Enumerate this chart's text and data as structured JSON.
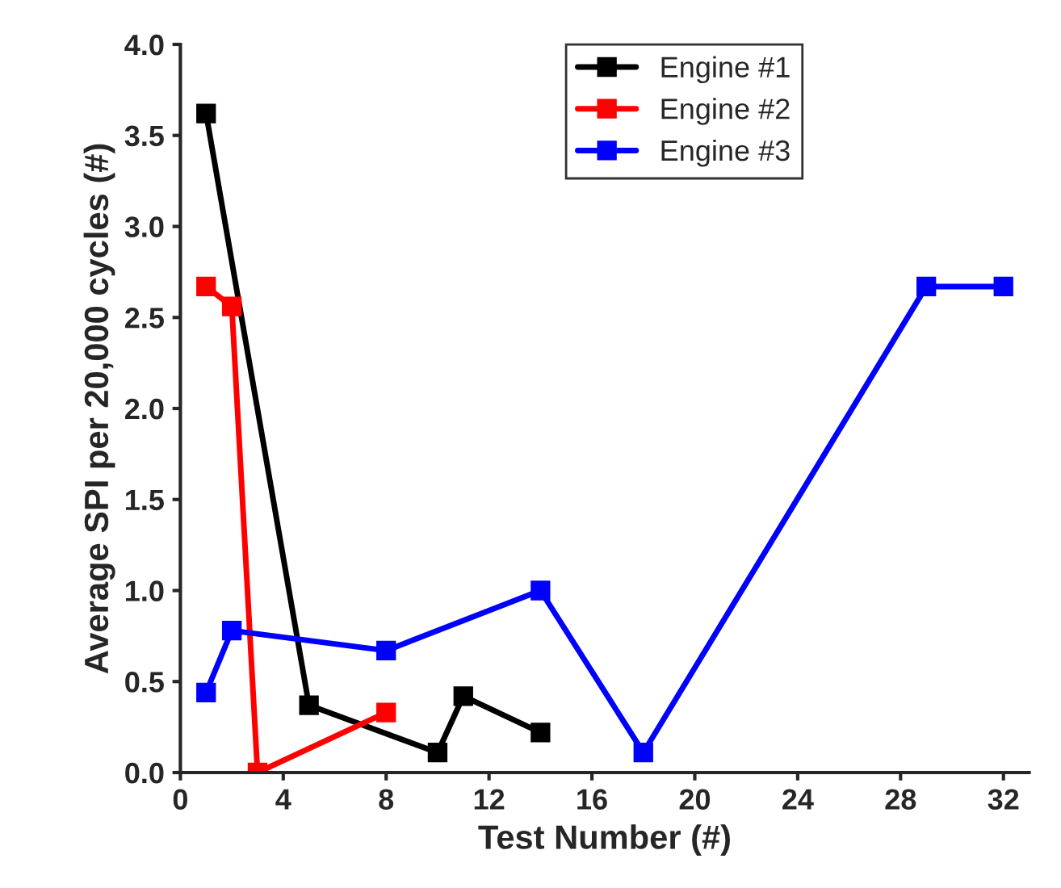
{
  "chart_data": {
    "type": "line",
    "xlabel": "Test Number (#)",
    "ylabel": "Average SPI per 20,000 cycles (#)",
    "series": [
      {
        "name": "Engine #1",
        "color": "#000000",
        "x": [
          1,
          5,
          10,
          11,
          14
        ],
        "values": [
          3.62,
          0.37,
          0.11,
          0.42,
          0.22
        ]
      },
      {
        "name": "Engine #2",
        "color": "#ff0000",
        "x": [
          1,
          2,
          3,
          8
        ],
        "values": [
          2.67,
          2.56,
          0.0,
          0.33
        ]
      },
      {
        "name": "Engine #3",
        "color": "#0000ff",
        "x": [
          1,
          2,
          8,
          14,
          18,
          29,
          32
        ],
        "values": [
          0.44,
          0.78,
          0.67,
          1.0,
          0.11,
          2.67,
          2.67
        ]
      }
    ],
    "xlim": [
      0,
      33
    ],
    "xticks": [
      0,
      4,
      8,
      12,
      16,
      20,
      24,
      28,
      32
    ],
    "ylim": [
      0,
      4.0
    ],
    "yticks": [
      {
        "value": 0,
        "label": "0.0"
      },
      {
        "value": 0.5,
        "label": "0.5"
      },
      {
        "value": 1.0,
        "label": "1.0"
      },
      {
        "value": 1.5,
        "label": "1.5"
      },
      {
        "value": 2.0,
        "label": "2.0"
      },
      {
        "value": 2.5,
        "label": "2.5"
      },
      {
        "value": 3.0,
        "label": "3.0"
      },
      {
        "value": 3.5,
        "label": "3.5"
      },
      {
        "value": 4.0,
        "label": "4.0"
      }
    ],
    "marker": "square",
    "line_style": "solid",
    "legend": "top right",
    "grid": false
  }
}
